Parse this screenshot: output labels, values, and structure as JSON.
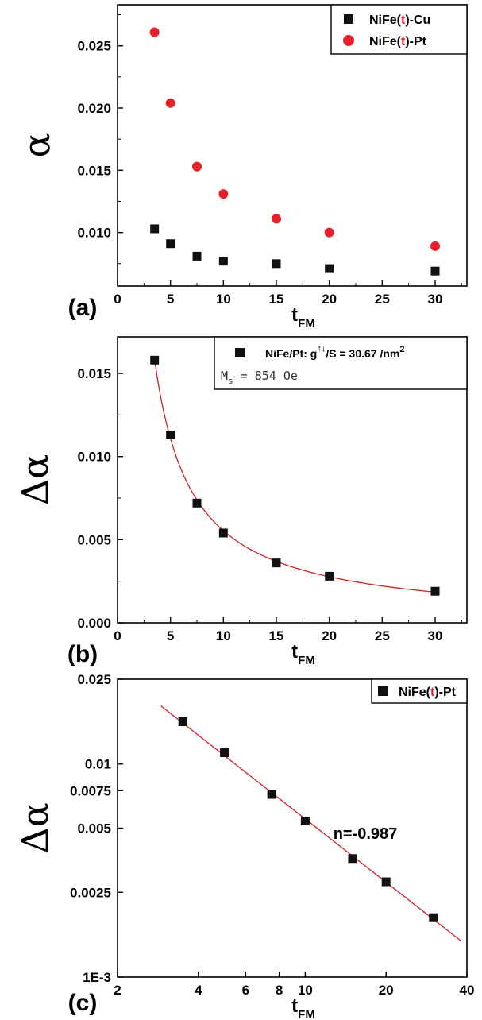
{
  "chart_data": [
    {
      "panel": "(a)",
      "type": "scatter",
      "xlabel": "t",
      "xlabel_sub": "FM",
      "ylabel": "α",
      "xlim": [
        0,
        33
      ],
      "ylim": [
        0.0057,
        0.0283
      ],
      "xticks": [
        0,
        5,
        10,
        15,
        20,
        25,
        30
      ],
      "yticks": [
        0.01,
        0.015,
        0.02,
        0.025
      ],
      "ytick_labels": [
        "0.010",
        "0.015",
        "0.020",
        "0.025"
      ],
      "legend_position": "top-right",
      "series": [
        {
          "name_pre": "NiFe(",
          "name_mid": "t",
          "name_post": ")-Cu",
          "marker": "square",
          "color": "#111111",
          "x": [
            3.5,
            5,
            7.5,
            10,
            15,
            20,
            30
          ],
          "y": [
            0.0103,
            0.0091,
            0.0081,
            0.0077,
            0.0075,
            0.0071,
            0.0069
          ]
        },
        {
          "name_pre": "NiFe(",
          "name_mid": "t",
          "name_post": ")-Pt",
          "marker": "circle",
          "color": "#e8202a",
          "x": [
            3.5,
            5,
            7.5,
            10,
            15,
            20,
            30
          ],
          "y": [
            0.0261,
            0.0204,
            0.0153,
            0.0131,
            0.0111,
            0.01,
            0.0089
          ]
        }
      ]
    },
    {
      "panel": "(b)",
      "type": "scatter",
      "xlabel": "t",
      "xlabel_sub": "FM",
      "ylabel": "Δα",
      "xlim": [
        0,
        33
      ],
      "ylim": [
        0,
        0.0172
      ],
      "xticks": [
        0,
        5,
        10,
        15,
        20,
        25,
        30
      ],
      "yticks": [
        0.0,
        0.005,
        0.01,
        0.015
      ],
      "ytick_labels": [
        "0.000",
        "0.005",
        "0.010",
        "0.015"
      ],
      "legend_position": "top-right",
      "legend_text": "NiFe/Pt: g",
      "legend_sup": "↑↓",
      "legend_text2": "/S = 30.67 /nm",
      "legend_sup2": "2",
      "ms_label": "M",
      "ms_sub": "s",
      "ms_value": "= 854 Oe",
      "series": [
        {
          "marker": "square",
          "color": "#111111",
          "x": [
            3.5,
            5,
            7.5,
            10,
            15,
            20,
            30
          ],
          "y": [
            0.0158,
            0.0113,
            0.0072,
            0.0054,
            0.0036,
            0.0028,
            0.0019
          ]
        }
      ],
      "fit": {
        "color": "#d0202a",
        "x_from": 3.5,
        "x_to": 30,
        "coeff": 0.0554,
        "power": -1.0
      }
    },
    {
      "panel": "(c)",
      "type": "scatter",
      "xlabel": "t",
      "xlabel_sub": "FM",
      "ylabel": "Δα",
      "xscale": "log",
      "yscale": "log",
      "xlim": [
        2,
        40
      ],
      "ylim": [
        0.001,
        0.025
      ],
      "xticks": [
        2,
        4,
        6,
        8,
        10,
        20,
        40
      ],
      "xtick_labels": [
        "2",
        "4",
        "6",
        "8",
        "10",
        "20",
        "40"
      ],
      "yticks": [
        0.001,
        0.0025,
        0.005,
        0.0075,
        0.01,
        0.025
      ],
      "ytick_labels": [
        "1E-3",
        "0.0025",
        "0.005",
        "0.0075",
        "0.01",
        "0.025"
      ],
      "legend_position": "top-right",
      "annotation": "n=-0.987",
      "series": [
        {
          "name_pre": "NiFe(",
          "name_mid": "t",
          "name_post": ")-Pt",
          "marker": "square",
          "color": "#111111",
          "x": [
            3.5,
            5,
            7.5,
            10,
            15,
            20,
            30
          ],
          "y": [
            0.0158,
            0.0113,
            0.0072,
            0.0054,
            0.0036,
            0.0028,
            0.0019
          ]
        }
      ],
      "fit": {
        "color": "#d0202a",
        "x_from": 2.9,
        "x_to": 38,
        "coeff": 0.0536,
        "power": -0.987
      }
    }
  ]
}
